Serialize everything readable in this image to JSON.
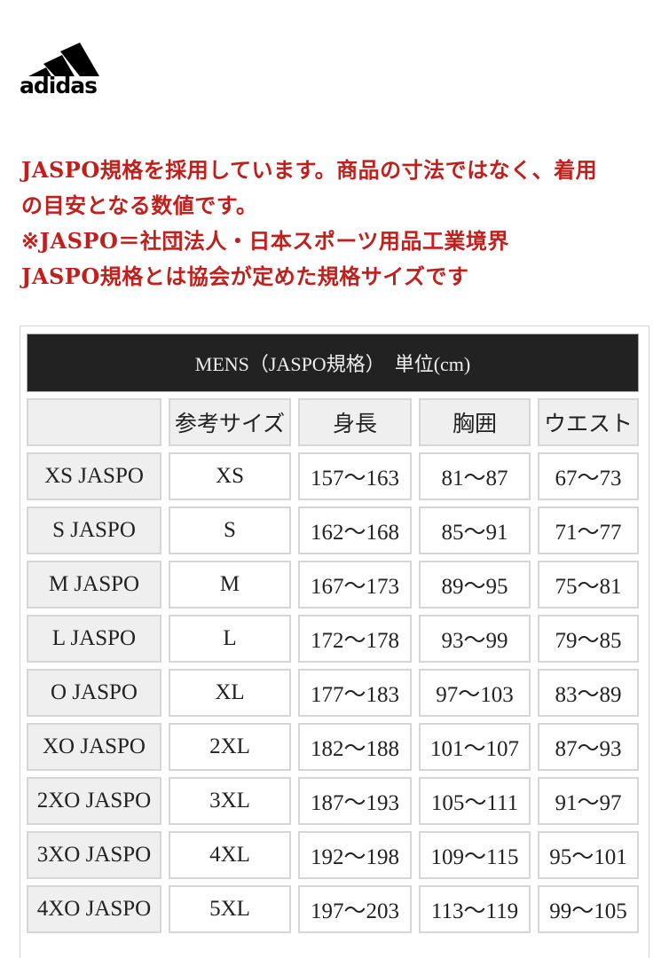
{
  "brand": {
    "logo_text": "adidas"
  },
  "notice": {
    "lines": [
      "JASPO規格を採用しています。商品の寸法ではなく、着用",
      "の目安となる数値です。",
      "※JASPO＝社団法人・日本スポーツ用品工業境界",
      "JASPO規格とは協会が定めた規格サイズです"
    ]
  },
  "table": {
    "title": "MENS（JASPO規格）　単位(cm)",
    "headers": [
      "",
      "参考サイズ",
      "身長",
      "胸囲",
      "ウエスト"
    ],
    "rows": [
      [
        "XS JASPO",
        "XS",
        "157～163",
        "81～87",
        "67～73"
      ],
      [
        "S JASPO",
        "S",
        "162～168",
        "85～91",
        "71～77"
      ],
      [
        "M JASPO",
        "M",
        "167～173",
        "89～95",
        "75～81"
      ],
      [
        "L JASPO",
        "L",
        "172～178",
        "93～99",
        "79～85"
      ],
      [
        "O JASPO",
        "XL",
        "177～183",
        "97～103",
        "83～89"
      ],
      [
        "XO JASPO",
        "2XL",
        "182～188",
        "101～107",
        "87～93"
      ],
      [
        "2XO JASPO",
        "3XL",
        "187～193",
        "105～111",
        "91～97"
      ],
      [
        "3XO JASPO",
        "4XL",
        "192～198",
        "109～115",
        "95～101"
      ],
      [
        "4XO JASPO",
        "5XL",
        "197～203",
        "113～119",
        "99～105"
      ]
    ]
  }
}
